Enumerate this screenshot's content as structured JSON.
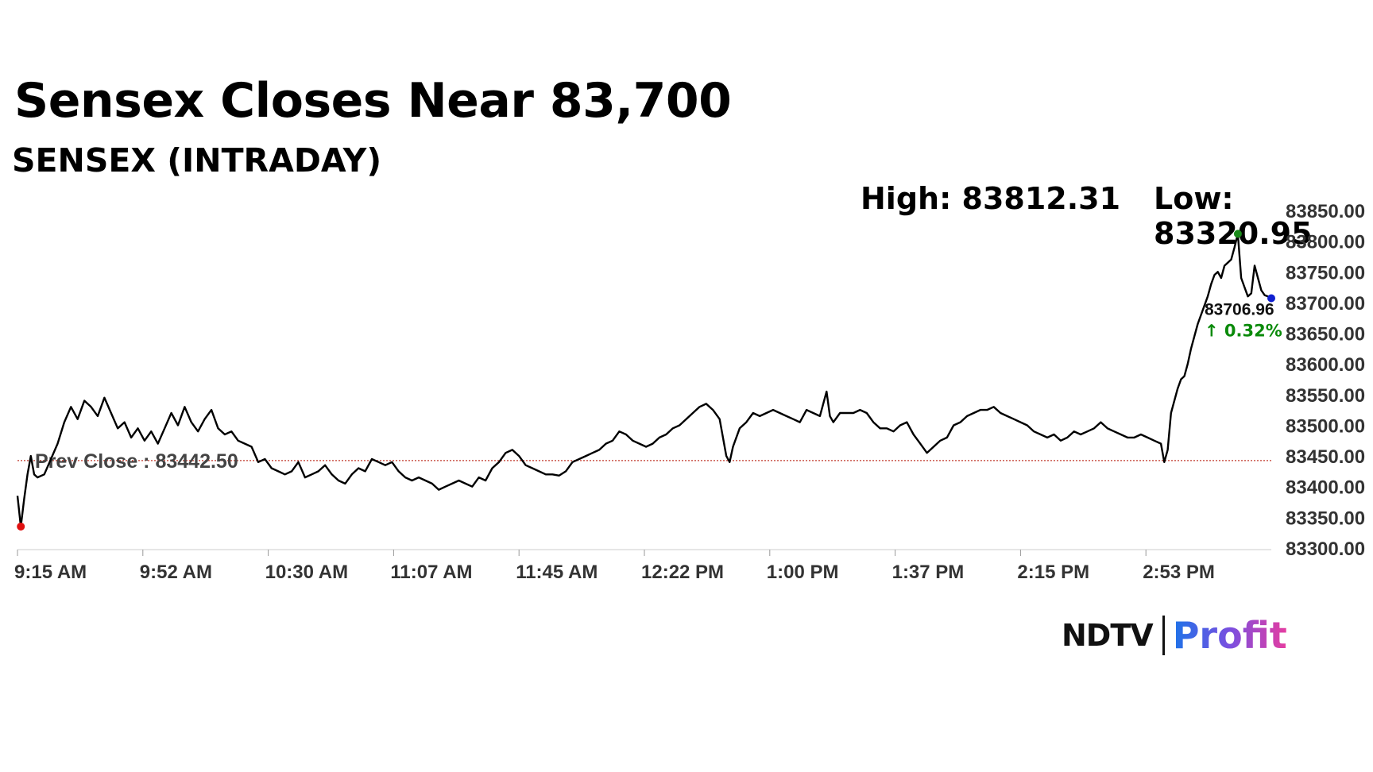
{
  "headline": "Sensex Closes Near 83,700",
  "chart_data": {
    "type": "line",
    "title": "SENSEX (INTRADAY)",
    "high_label": "High: 83812.31",
    "low_label": "Low: 83320.95",
    "high": 83812.31,
    "low": 83320.95,
    "prev_close": 83442.5,
    "prev_close_label": "Prev Close : 83442.50",
    "last_value": 83706.96,
    "last_value_label": "83706.96",
    "change_label": "↑ 0.32%",
    "ylim": [
      83300,
      83850
    ],
    "y_ticks": [
      "83300.00",
      "83350.00",
      "83400.00",
      "83450.00",
      "83500.00",
      "83550.00",
      "83600.00",
      "83650.00",
      "83700.00",
      "83750.00",
      "83800.00",
      "83850.00"
    ],
    "x_ticks": [
      "9:15 AM",
      "9:52 AM",
      "10:30 AM",
      "11:07 AM",
      "11:45 AM",
      "12:22 PM",
      "1:00 PM",
      "1:37 PM",
      "2:15 PM",
      "2:53 PM"
    ],
    "x_range_minutes": [
      0,
      375
    ],
    "x_tick_interval_minutes": 37.5,
    "series": [
      {
        "points": [
          [
            0,
            83385
          ],
          [
            1,
            83335
          ],
          [
            2,
            83380
          ],
          [
            3,
            83420
          ],
          [
            4,
            83450
          ],
          [
            5,
            83420
          ],
          [
            6,
            83415
          ],
          [
            8,
            83420
          ],
          [
            10,
            83445
          ],
          [
            12,
            83470
          ],
          [
            14,
            83505
          ],
          [
            16,
            83530
          ],
          [
            18,
            83510
          ],
          [
            20,
            83540
          ],
          [
            22,
            83530
          ],
          [
            24,
            83515
          ],
          [
            26,
            83545
          ],
          [
            28,
            83520
          ],
          [
            30,
            83495
          ],
          [
            32,
            83505
          ],
          [
            34,
            83480
          ],
          [
            36,
            83495
          ],
          [
            38,
            83475
          ],
          [
            40,
            83490
          ],
          [
            42,
            83470
          ],
          [
            44,
            83495
          ],
          [
            46,
            83520
          ],
          [
            48,
            83500
          ],
          [
            50,
            83530
          ],
          [
            52,
            83505
          ],
          [
            54,
            83490
          ],
          [
            56,
            83510
          ],
          [
            58,
            83525
          ],
          [
            60,
            83495
          ],
          [
            62,
            83485
          ],
          [
            64,
            83490
          ],
          [
            66,
            83475
          ],
          [
            68,
            83470
          ],
          [
            70,
            83465
          ],
          [
            72,
            83440
          ],
          [
            74,
            83445
          ],
          [
            76,
            83430
          ],
          [
            78,
            83425
          ],
          [
            80,
            83420
          ],
          [
            82,
            83425
          ],
          [
            84,
            83440
          ],
          [
            86,
            83415
          ],
          [
            88,
            83420
          ],
          [
            90,
            83425
          ],
          [
            92,
            83435
          ],
          [
            94,
            83420
          ],
          [
            96,
            83410
          ],
          [
            98,
            83405
          ],
          [
            100,
            83420
          ],
          [
            102,
            83430
          ],
          [
            104,
            83425
          ],
          [
            106,
            83445
          ],
          [
            108,
            83440
          ],
          [
            110,
            83435
          ],
          [
            112,
            83440
          ],
          [
            114,
            83425
          ],
          [
            116,
            83415
          ],
          [
            118,
            83410
          ],
          [
            120,
            83415
          ],
          [
            122,
            83410
          ],
          [
            124,
            83405
          ],
          [
            126,
            83395
          ],
          [
            128,
            83400
          ],
          [
            130,
            83405
          ],
          [
            132,
            83410
          ],
          [
            134,
            83405
          ],
          [
            136,
            83400
          ],
          [
            138,
            83415
          ],
          [
            140,
            83410
          ],
          [
            142,
            83430
          ],
          [
            144,
            83440
          ],
          [
            146,
            83455
          ],
          [
            148,
            83460
          ],
          [
            150,
            83450
          ],
          [
            152,
            83435
          ],
          [
            154,
            83430
          ],
          [
            156,
            83425
          ],
          [
            158,
            83420
          ],
          [
            160,
            83420
          ],
          [
            162,
            83418
          ],
          [
            164,
            83425
          ],
          [
            166,
            83440
          ],
          [
            168,
            83445
          ],
          [
            170,
            83450
          ],
          [
            172,
            83455
          ],
          [
            174,
            83460
          ],
          [
            176,
            83470
          ],
          [
            178,
            83475
          ],
          [
            180,
            83490
          ],
          [
            182,
            83485
          ],
          [
            184,
            83475
          ],
          [
            186,
            83470
          ],
          [
            188,
            83465
          ],
          [
            190,
            83470
          ],
          [
            192,
            83480
          ],
          [
            194,
            83485
          ],
          [
            196,
            83495
          ],
          [
            198,
            83500
          ],
          [
            200,
            83510
          ],
          [
            202,
            83520
          ],
          [
            204,
            83530
          ],
          [
            206,
            83535
          ],
          [
            208,
            83525
          ],
          [
            210,
            83510
          ],
          [
            212,
            83450
          ],
          [
            213,
            83440
          ],
          [
            214,
            83465
          ],
          [
            216,
            83495
          ],
          [
            218,
            83505
          ],
          [
            220,
            83520
          ],
          [
            222,
            83515
          ],
          [
            224,
            83520
          ],
          [
            226,
            83525
          ],
          [
            228,
            83520
          ],
          [
            230,
            83515
          ],
          [
            232,
            83510
          ],
          [
            234,
            83505
          ],
          [
            236,
            83525
          ],
          [
            238,
            83520
          ],
          [
            240,
            83515
          ],
          [
            242,
            83555
          ],
          [
            243,
            83515
          ],
          [
            244,
            83505
          ],
          [
            246,
            83520
          ],
          [
            248,
            83520
          ],
          [
            250,
            83520
          ],
          [
            252,
            83525
          ],
          [
            254,
            83520
          ],
          [
            256,
            83505
          ],
          [
            258,
            83495
          ],
          [
            260,
            83495
          ],
          [
            262,
            83490
          ],
          [
            264,
            83500
          ],
          [
            266,
            83505
          ],
          [
            268,
            83485
          ],
          [
            270,
            83470
          ],
          [
            272,
            83455
          ],
          [
            274,
            83465
          ],
          [
            276,
            83475
          ],
          [
            278,
            83480
          ],
          [
            280,
            83500
          ],
          [
            282,
            83505
          ],
          [
            284,
            83515
          ],
          [
            286,
            83520
          ],
          [
            288,
            83525
          ],
          [
            290,
            83525
          ],
          [
            292,
            83530
          ],
          [
            294,
            83520
          ],
          [
            296,
            83515
          ],
          [
            298,
            83510
          ],
          [
            300,
            83505
          ],
          [
            302,
            83500
          ],
          [
            304,
            83490
          ],
          [
            306,
            83485
          ],
          [
            308,
            83480
          ],
          [
            310,
            83485
          ],
          [
            312,
            83475
          ],
          [
            314,
            83480
          ],
          [
            316,
            83490
          ],
          [
            318,
            83485
          ],
          [
            320,
            83490
          ],
          [
            322,
            83495
          ],
          [
            324,
            83505
          ],
          [
            326,
            83495
          ],
          [
            328,
            83490
          ],
          [
            330,
            83485
          ],
          [
            332,
            83480
          ],
          [
            334,
            83480
          ],
          [
            336,
            83485
          ],
          [
            338,
            83480
          ],
          [
            340,
            83475
          ],
          [
            342,
            83470
          ],
          [
            343,
            83440
          ],
          [
            344,
            83460
          ],
          [
            345,
            83520
          ],
          [
            346,
            83540
          ],
          [
            347,
            83560
          ],
          [
            348,
            83575
          ],
          [
            349,
            83580
          ],
          [
            350,
            83600
          ],
          [
            351,
            83625
          ],
          [
            352,
            83645
          ],
          [
            353,
            83665
          ],
          [
            354,
            83680
          ],
          [
            355,
            83695
          ],
          [
            356,
            83710
          ],
          [
            357,
            83730
          ],
          [
            358,
            83745
          ],
          [
            359,
            83750
          ],
          [
            360,
            83740
          ],
          [
            361,
            83760
          ],
          [
            362,
            83765
          ],
          [
            363,
            83770
          ],
          [
            364,
            83790
          ],
          [
            365,
            83812
          ],
          [
            366,
            83740
          ],
          [
            367,
            83725
          ],
          [
            368,
            83710
          ],
          [
            369,
            83715
          ],
          [
            370,
            83760
          ],
          [
            371,
            83740
          ],
          [
            372,
            83720
          ],
          [
            373,
            83712
          ],
          [
            374,
            83710
          ],
          [
            375,
            83707
          ]
        ]
      }
    ]
  },
  "logo": {
    "brand": "NDTV",
    "product": "Profit"
  },
  "colors": {
    "line": "#000000",
    "prev_close_line": "#c0392b",
    "low_marker": "#e01010",
    "high_marker": "#1a8a1a",
    "last_marker": "#1020d0",
    "change_text": "#0a8a0a",
    "axis_text": "#333333"
  }
}
